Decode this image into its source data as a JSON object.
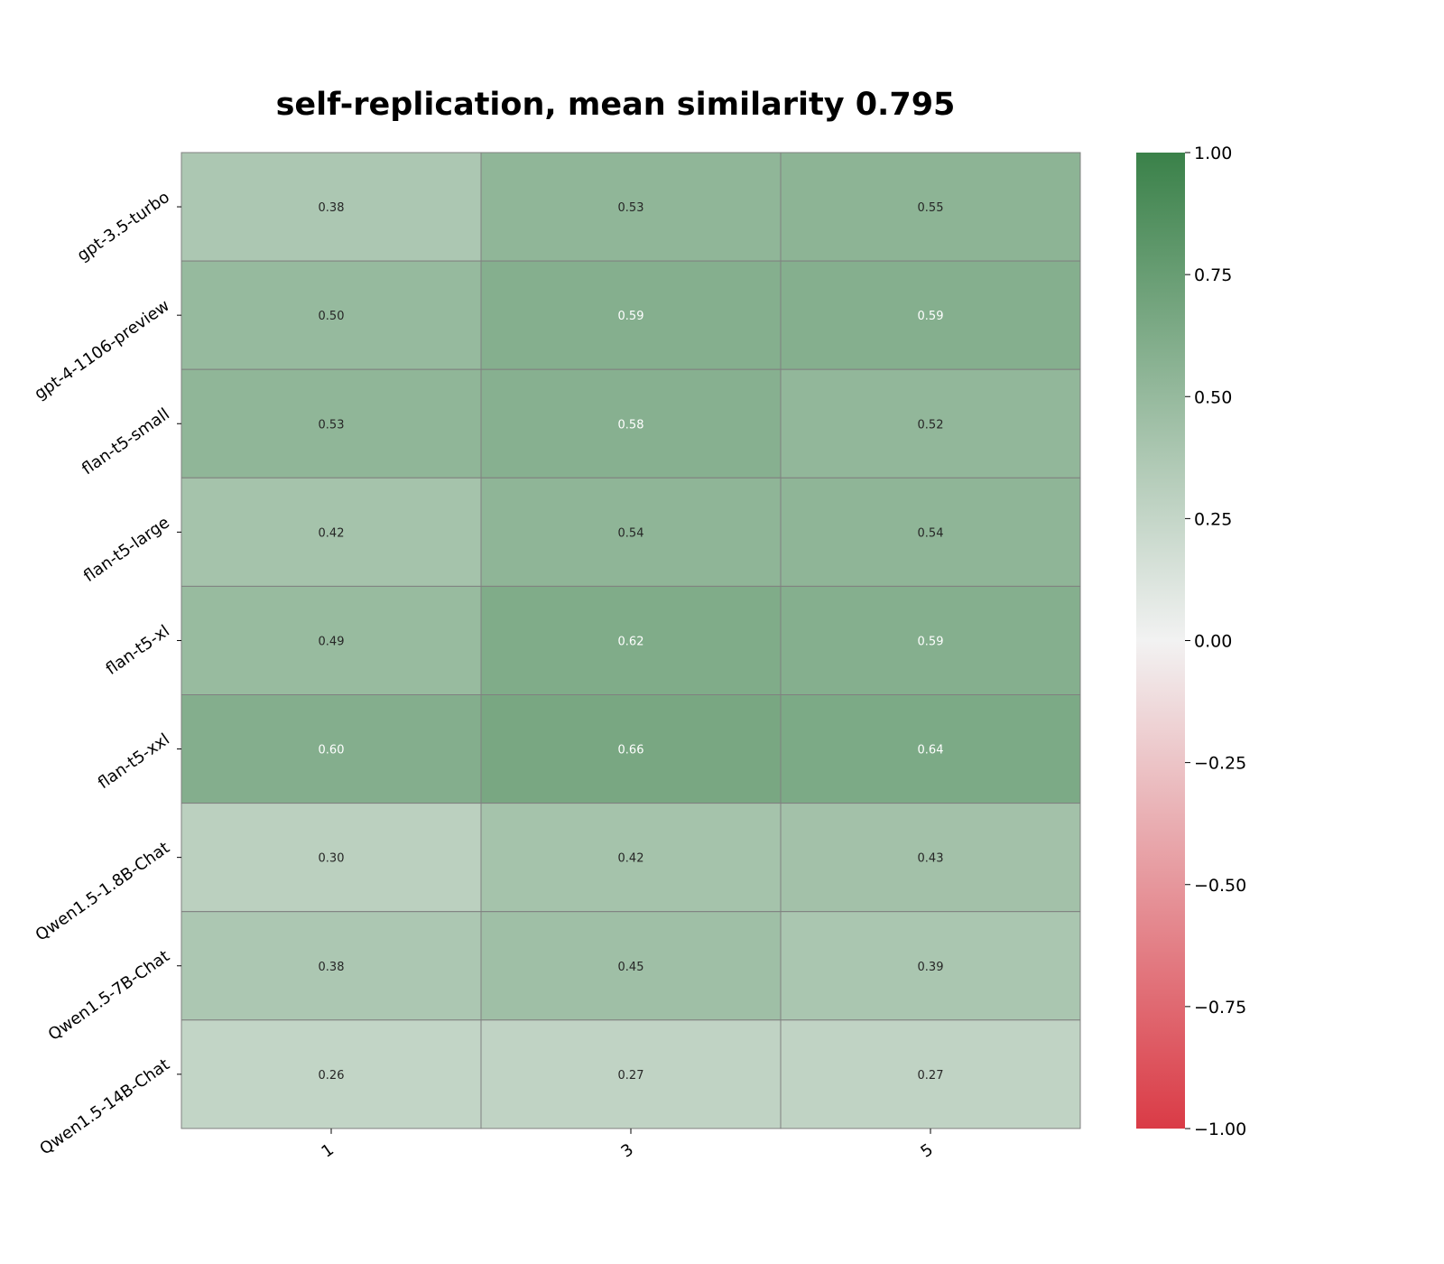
{
  "chart_data": {
    "type": "heatmap",
    "title": "self-replication, mean similarity 0.795",
    "x_categories": [
      "1",
      "3",
      "5"
    ],
    "y_categories": [
      "gpt-3.5-turbo",
      "gpt-4-1106-preview",
      "flan-t5-small",
      "flan-t5-large",
      "flan-t5-xl",
      "flan-t5-xxl",
      "Qwen1.5-1.8B-Chat",
      "Qwen1.5-7B-Chat",
      "Qwen1.5-14B-Chat"
    ],
    "values": [
      [
        0.38,
        0.53,
        0.55
      ],
      [
        0.5,
        0.59,
        0.59
      ],
      [
        0.53,
        0.58,
        0.52
      ],
      [
        0.42,
        0.54,
        0.54
      ],
      [
        0.49,
        0.62,
        0.59
      ],
      [
        0.6,
        0.66,
        0.64
      ],
      [
        0.3,
        0.42,
        0.43
      ],
      [
        0.38,
        0.45,
        0.39
      ],
      [
        0.26,
        0.27,
        0.27
      ]
    ],
    "value_format": "0.00",
    "colorbar": {
      "min": -1.0,
      "max": 1.0,
      "ticks": [
        1.0,
        0.75,
        0.5,
        0.25,
        0.0,
        -0.25,
        -0.5,
        -0.75,
        -1.0
      ],
      "tick_labels": [
        "1.00",
        "0.75",
        "0.50",
        "0.25",
        "0.00",
        "−0.25",
        "−0.50",
        "−0.75",
        "−1.00"
      ],
      "color_low": "#da3b46",
      "color_mid": "#f2f2f2",
      "color_high": "#3a8149"
    },
    "xlabel": "",
    "ylabel": "",
    "grid": false
  }
}
